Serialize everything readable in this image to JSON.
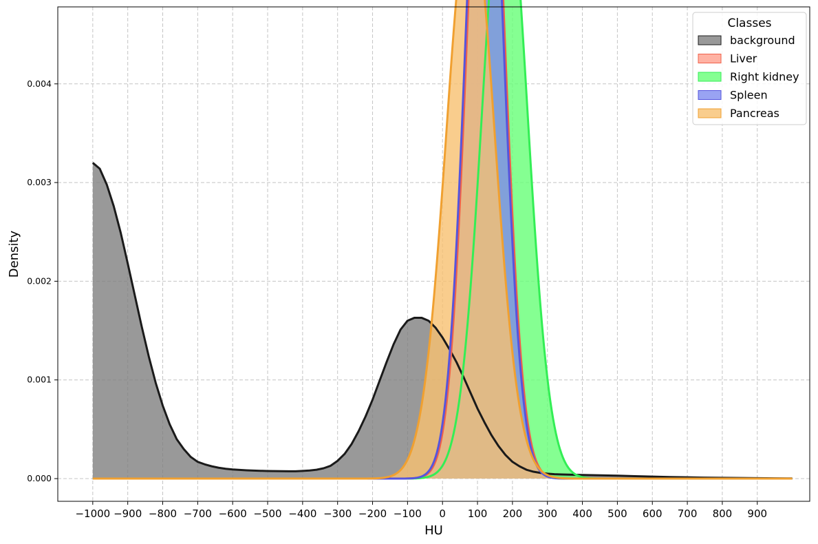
{
  "chart_data": {
    "type": "area",
    "xlabel": "HU",
    "ylabel": "Density",
    "xlim": [
      -1100,
      1050
    ],
    "ylim": [
      -0.00023,
      0.00478
    ],
    "x_ticks": [
      -1000,
      -900,
      -800,
      -700,
      -600,
      -500,
      -400,
      -300,
      -200,
      -100,
      0,
      100,
      200,
      300,
      400,
      500,
      600,
      700,
      800,
      900
    ],
    "x_tick_labels": [
      "−1000",
      "−900",
      "−800",
      "−700",
      "−600",
      "−500",
      "−400",
      "−300",
      "−200",
      "−100",
      "0",
      "100",
      "200",
      "300",
      "400",
      "500",
      "600",
      "700",
      "800",
      "900"
    ],
    "y_ticks": [
      0,
      0.001,
      0.002,
      0.003,
      0.004
    ],
    "y_tick_labels": [
      "0.000",
      "0.001",
      "0.002",
      "0.003",
      "0.004"
    ],
    "grid": true,
    "legend": {
      "title": "Classes",
      "placement": "top-right"
    },
    "series": [
      {
        "name": "background",
        "color": "#1a1a1a",
        "fill": "#808080",
        "x": [
          -1000,
          -980,
          -960,
          -940,
          -920,
          -900,
          -880,
          -860,
          -840,
          -820,
          -800,
          -780,
          -760,
          -740,
          -720,
          -700,
          -680,
          -660,
          -640,
          -620,
          -600,
          -580,
          -560,
          -540,
          -520,
          -500,
          -480,
          -460,
          -440,
          -420,
          -400,
          -380,
          -360,
          -340,
          -320,
          -300,
          -280,
          -260,
          -240,
          -220,
          -200,
          -180,
          -160,
          -140,
          -120,
          -100,
          -80,
          -60,
          -40,
          -20,
          0,
          20,
          40,
          60,
          80,
          100,
          120,
          140,
          160,
          180,
          200,
          220,
          240,
          260,
          280,
          300,
          320,
          340,
          360,
          380,
          400,
          450,
          500,
          550,
          600,
          650,
          700,
          750,
          800,
          850,
          900,
          950,
          1000
        ],
        "y": [
          0.0032,
          0.00314,
          0.00298,
          0.00276,
          0.00249,
          0.00218,
          0.00186,
          0.00154,
          0.00124,
          0.00097,
          0.00074,
          0.00055,
          0.0004,
          0.0003,
          0.00022,
          0.00017,
          0.000145,
          0.000125,
          0.00011,
          0.0001,
          9.3e-05,
          8.8e-05,
          8.4e-05,
          8.1e-05,
          7.9e-05,
          7.7e-05,
          7.6e-05,
          7.5e-05,
          7.4e-05,
          7.4e-05,
          7.8e-05,
          8.2e-05,
          9e-05,
          0.000105,
          0.00013,
          0.00018,
          0.00025,
          0.00035,
          0.00048,
          0.00063,
          0.0008,
          0.00099,
          0.00118,
          0.00136,
          0.00151,
          0.0016,
          0.00163,
          0.00163,
          0.0016,
          0.00153,
          0.00143,
          0.00131,
          0.00118,
          0.00103,
          0.00087,
          0.00071,
          0.00057,
          0.00044,
          0.00033,
          0.00024,
          0.00017,
          0.000125,
          9e-05,
          7e-05,
          5.8e-05,
          5e-05,
          4.5e-05,
          4.2e-05,
          4e-05,
          3.9e-05,
          3.7e-05,
          3.3e-05,
          3e-05,
          2.5e-05,
          2e-05,
          1.6e-05,
          1.3e-05,
          1e-05,
          8e-06,
          6e-06,
          5e-06,
          3e-06,
          2e-06
        ]
      },
      {
        "name": "Liver",
        "color": "#f0604a",
        "fill": "#ff9f8c",
        "mean": 124,
        "sd": 52.5,
        "x_range": [
          -1000,
          1000
        ]
      },
      {
        "name": "Right kidney",
        "color": "#33ee55",
        "fill": "#66ff77",
        "mean": 178,
        "sd": 64,
        "x_range": [
          -1000,
          1000
        ]
      },
      {
        "name": "Spleen",
        "color": "#5555dd",
        "fill": "#7f8cf0",
        "mean": 120,
        "sd": 52.5,
        "x_range": [
          -1000,
          1000
        ]
      },
      {
        "name": "Pancreas",
        "color": "#f0a030",
        "fill": "#f7c070",
        "mean": 80,
        "sd": 69,
        "x_range": [
          -1000,
          1000
        ]
      }
    ]
  }
}
